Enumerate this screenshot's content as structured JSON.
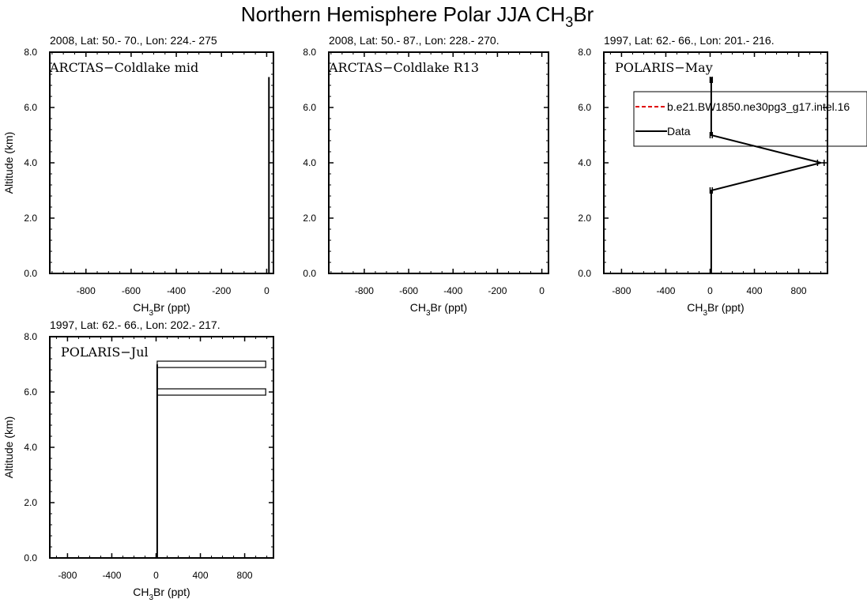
{
  "figure": {
    "title_main": "Northern Hemisphere Polar JJA CH",
    "title_sub": "3",
    "title_tail": "Br"
  },
  "colors": {
    "data": "#000000",
    "model": "#e00000"
  },
  "chart_data": [
    {
      "type": "line",
      "header": "2008, Lat:  50.- 70., Lon: 224.- 275",
      "label": "ARCTAS−Coldlake mid",
      "xlabel_main": "CH",
      "xlabel_sub": "3",
      "xlabel_tail": "Br (ppt)",
      "ylabel": "Altitude (km)",
      "xlim": [
        -960,
        30
      ],
      "ylim": [
        0,
        8
      ],
      "xticks": [
        -800,
        -600,
        -400,
        -200,
        0
      ],
      "xtick_labels": [
        "-800",
        "-600",
        "-400",
        "-200",
        "0"
      ],
      "yticks": [
        0,
        2,
        4,
        6,
        8
      ],
      "ytick_labels": [
        "0.0",
        "2.0",
        "4.0",
        "6.0",
        "8.0"
      ],
      "series": [
        {
          "x": [
            10,
            10
          ],
          "y": [
            0,
            7.1
          ]
        }
      ],
      "legend": null
    },
    {
      "type": "line",
      "header": "2008, Lat:  50.- 87., Lon: 228.- 270.",
      "label": "ARCTAS−Coldlake R13",
      "xlabel_main": "CH",
      "xlabel_sub": "3",
      "xlabel_tail": "Br (ppt)",
      "ylabel": "",
      "xlim": [
        -960,
        30
      ],
      "ylim": [
        0,
        8
      ],
      "xticks": [
        -800,
        -600,
        -400,
        -200,
        0
      ],
      "xtick_labels": [
        "-800",
        "-600",
        "-400",
        "-200",
        "0"
      ],
      "yticks": [
        0,
        2,
        4,
        6,
        8
      ],
      "ytick_labels": [
        "0.0",
        "2.0",
        "4.0",
        "6.0",
        "8.0"
      ],
      "series": [],
      "legend": null
    },
    {
      "type": "line",
      "header": "1997, Lat: 62.- 66., Lon: 201.- 216.",
      "label": "POLARIS−May",
      "xlabel_main": "CH",
      "xlabel_sub": "3",
      "xlabel_tail": "Br (ppt)",
      "ylabel": "",
      "xlim": [
        -960,
        1060
      ],
      "ylim": [
        0,
        8
      ],
      "xticks": [
        -800,
        -400,
        0,
        400,
        800
      ],
      "xtick_labels": [
        "-800",
        "-400",
        "0",
        "400",
        "800"
      ],
      "yticks": [
        0,
        2,
        4,
        6,
        8
      ],
      "ytick_labels": [
        "0.0",
        "2.0",
        "4.0",
        "6.0",
        "8.0"
      ],
      "series": [
        {
          "x": [
            10,
            10,
            10,
            1000,
            10,
            10
          ],
          "y": [
            0,
            3,
            3,
            4,
            5,
            7.1
          ]
        }
      ],
      "error_bars": [
        {
          "y": 7.0,
          "x_low": 0,
          "x_high": 20
        },
        {
          "y": 5.0,
          "x_low": 0,
          "x_high": 20
        },
        {
          "y": 4.0,
          "x_low": 970,
          "x_high": 1030
        },
        {
          "y": 3.0,
          "x_low": 0,
          "x_high": 20
        }
      ],
      "legend": {
        "entries": [
          {
            "label": "b.e21.BW1850.ne30pg3_g17.intel.16",
            "style": "dashed",
            "color": "#e00000"
          },
          {
            "label": "Data",
            "style": "solid",
            "color": "#000000"
          }
        ]
      }
    },
    {
      "type": "line",
      "header": "1997, Lat: 62.- 66., Lon: 202.- 217.",
      "label": "POLARIS−Jul",
      "xlabel_main": "CH",
      "xlabel_sub": "3",
      "xlabel_tail": "Br (ppt)",
      "ylabel": "Altitude (km)",
      "xlim": [
        -960,
        1060
      ],
      "ylim": [
        0,
        8
      ],
      "xticks": [
        -800,
        -400,
        0,
        400,
        800
      ],
      "xtick_labels": [
        "-800",
        "-400",
        "0",
        "400",
        "800"
      ],
      "yticks": [
        0,
        2,
        4,
        6,
        8
      ],
      "ytick_labels": [
        "0.0",
        "2.0",
        "4.0",
        "6.0",
        "8.0"
      ],
      "series": [
        {
          "x": [
            10,
            10
          ],
          "y": [
            0,
            7.0
          ]
        }
      ],
      "error_bars": [
        {
          "y": 7.0,
          "x_low": 10,
          "x_high": 990
        },
        {
          "y": 6.0,
          "x_low": 10,
          "x_high": 990
        }
      ],
      "legend": null
    }
  ]
}
